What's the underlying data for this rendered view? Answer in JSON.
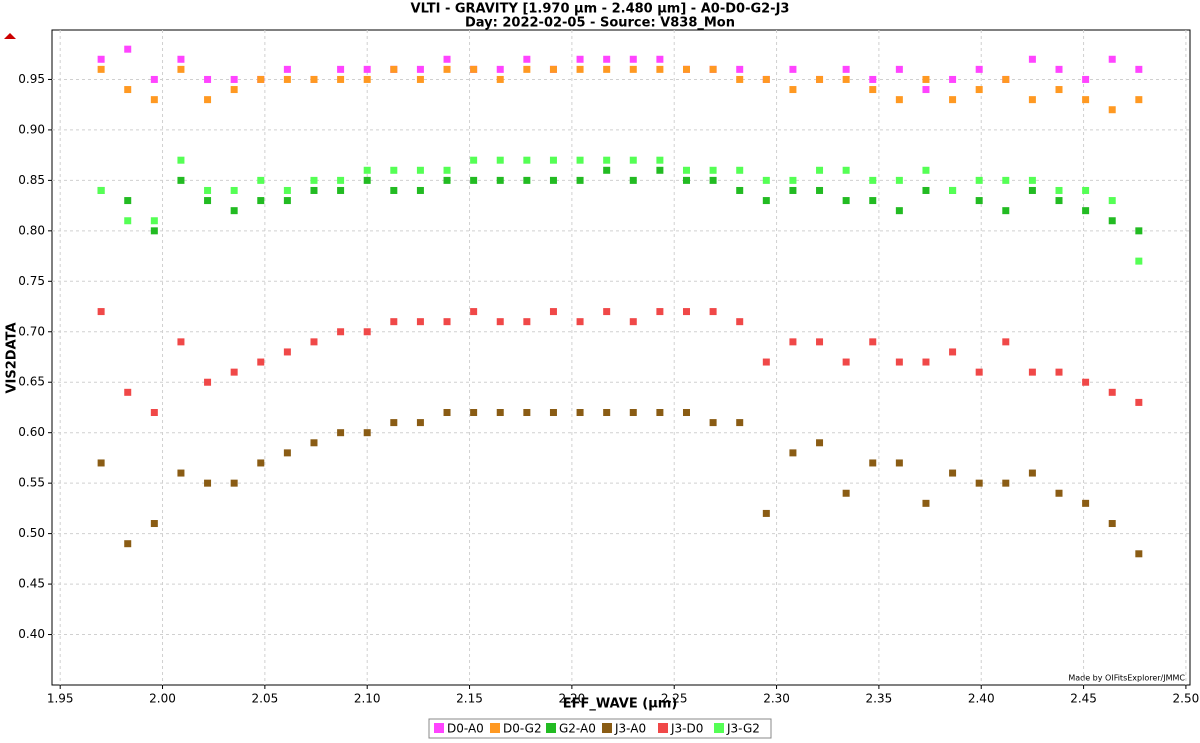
{
  "chart_data": {
    "type": "scatter",
    "title": "VLTI - GRAVITY [1.970 µm - 2.480 µm] - A0-D0-G2-J3",
    "subtitle": "Day: 2022-02-05 - Source: V838_Mon",
    "x_label": "EFF_WAVE (µm)",
    "y_label": "VIS2DATA",
    "credit": "Made by OIFitsExplorer/JMMC",
    "grid": true,
    "xlim": [
      1.946,
      2.502
    ],
    "ylim": [
      0.35,
      0.999
    ],
    "xticks": [
      1.95,
      {
        "value": 2.0,
        "label": "2.00"
      },
      2.05,
      {
        "value": 2.1,
        "label": "2.10"
      },
      2.15,
      {
        "value": 2.2,
        "label": "2.20"
      },
      2.25,
      {
        "value": 2.3,
        "label": "2.30"
      },
      2.35,
      {
        "value": 2.4,
        "label": "2.40"
      },
      2.45,
      {
        "value": 2.5,
        "label": "2.50"
      }
    ],
    "yticks": [
      {
        "value": 0.4,
        "label": "0.40"
      },
      0.45,
      {
        "value": 0.5,
        "label": "0.50"
      },
      0.55,
      {
        "value": 0.6,
        "label": "0.60"
      },
      0.65,
      {
        "value": 0.7,
        "label": "0.70"
      },
      0.75,
      {
        "value": 0.8,
        "label": "0.80"
      },
      0.85,
      {
        "value": 0.9,
        "label": "0.90"
      },
      0.95
    ],
    "x": [
      1.97,
      1.983,
      1.996,
      2.009,
      2.022,
      2.035,
      2.048,
      2.061,
      2.074,
      2.087,
      2.1,
      2.113,
      2.126,
      2.139,
      2.152,
      2.165,
      2.178,
      2.191,
      2.204,
      2.217,
      2.23,
      2.243,
      2.256,
      2.269,
      2.282,
      2.295,
      2.308,
      2.321,
      2.334,
      2.347,
      2.36,
      2.373,
      2.386,
      2.399,
      2.412,
      2.425,
      2.438,
      2.451,
      2.464,
      2.477
    ],
    "series": [
      {
        "name": "D0-A0",
        "color": "#ff44ff",
        "values": [
          0.97,
          0.98,
          0.95,
          0.97,
          0.95,
          0.95,
          0.95,
          0.96,
          0.95,
          0.96,
          0.96,
          0.96,
          0.96,
          0.97,
          0.96,
          0.96,
          0.97,
          0.96,
          0.97,
          0.97,
          0.97,
          0.97,
          0.96,
          0.96,
          0.96,
          0.95,
          0.96,
          0.95,
          0.96,
          0.95,
          0.96,
          0.94,
          0.95,
          0.96,
          0.95,
          0.97,
          0.96,
          0.95,
          0.97,
          0.96
        ]
      },
      {
        "name": "D0-G2",
        "color": "#ff9922",
        "values": [
          0.96,
          0.94,
          0.93,
          0.96,
          0.93,
          0.94,
          0.95,
          0.95,
          0.95,
          0.95,
          0.95,
          0.96,
          0.95,
          0.96,
          0.96,
          0.95,
          0.96,
          0.96,
          0.96,
          0.96,
          0.96,
          0.96,
          0.96,
          0.96,
          0.95,
          0.95,
          0.94,
          0.95,
          0.95,
          0.94,
          0.93,
          0.95,
          0.93,
          0.94,
          0.95,
          0.93,
          0.94,
          0.93,
          0.92,
          0.93
        ]
      },
      {
        "name": "G2-A0",
        "color": "#22bb22",
        "values": [
          0.84,
          0.83,
          0.8,
          0.85,
          0.83,
          0.82,
          0.83,
          0.83,
          0.84,
          0.84,
          0.85,
          0.84,
          0.84,
          0.85,
          0.85,
          0.85,
          0.85,
          0.85,
          0.85,
          0.86,
          0.85,
          0.86,
          0.85,
          0.85,
          0.84,
          0.83,
          0.84,
          0.84,
          0.83,
          0.83,
          0.82,
          0.84,
          0.84,
          0.83,
          0.82,
          0.84,
          0.83,
          0.82,
          0.81,
          0.8
        ]
      },
      {
        "name": "J3-A0",
        "color": "#8a5c14",
        "values": [
          0.57,
          0.49,
          0.51,
          0.56,
          0.55,
          0.55,
          0.57,
          0.58,
          0.59,
          0.6,
          0.6,
          0.61,
          0.61,
          0.62,
          0.62,
          0.62,
          0.62,
          0.62,
          0.62,
          0.62,
          0.62,
          0.62,
          0.62,
          0.61,
          0.61,
          0.52,
          0.58,
          0.59,
          0.54,
          0.57,
          0.57,
          0.53,
          0.56,
          0.55,
          0.55,
          0.56,
          0.54,
          0.53,
          0.51,
          0.48
        ]
      },
      {
        "name": "J3-D0",
        "color": "#f04848",
        "values": [
          0.72,
          0.64,
          0.62,
          0.69,
          0.65,
          0.66,
          0.67,
          0.68,
          0.69,
          0.7,
          0.7,
          0.71,
          0.71,
          0.71,
          0.72,
          0.71,
          0.71,
          0.72,
          0.71,
          0.72,
          0.71,
          0.72,
          0.72,
          0.72,
          0.71,
          0.67,
          0.69,
          0.69,
          0.67,
          0.69,
          0.67,
          0.67,
          0.68,
          0.66,
          0.69,
          0.66,
          0.66,
          0.65,
          0.64,
          0.63
        ]
      },
      {
        "name": "J3-G2",
        "color": "#55ff55",
        "values": [
          0.84,
          0.81,
          0.81,
          0.87,
          0.84,
          0.84,
          0.85,
          0.84,
          0.85,
          0.85,
          0.86,
          0.86,
          0.86,
          0.86,
          0.87,
          0.87,
          0.87,
          0.87,
          0.87,
          0.87,
          0.87,
          0.87,
          0.86,
          0.86,
          0.86,
          0.85,
          0.85,
          0.86,
          0.86,
          0.85,
          0.85,
          0.86,
          0.84,
          0.85,
          0.85,
          0.85,
          0.84,
          0.84,
          0.83,
          0.77
        ]
      }
    ]
  }
}
